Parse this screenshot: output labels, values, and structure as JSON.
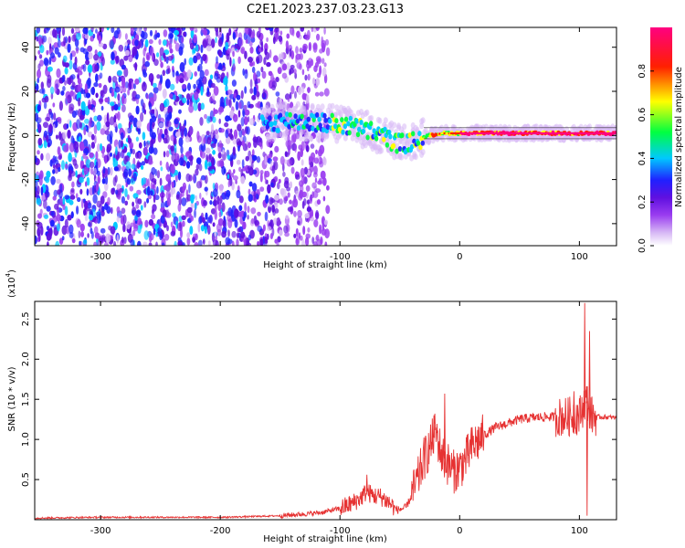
{
  "title": "C2E1.2023.237.03.23.G13",
  "chart_data": [
    {
      "type": "heatmap",
      "xlabel": "Height of straight line (km)",
      "ylabel": "Frequency (Hz)",
      "xlim": [
        -355,
        131
      ],
      "ylim": [
        -50,
        49
      ],
      "xticks": [
        -300,
        -200,
        -100,
        0,
        100
      ],
      "xtick_labels": [
        "-300",
        "-200",
        "-100",
        "0",
        "100"
      ],
      "yticks": [
        -40,
        -20,
        0,
        20,
        40
      ],
      "ytick_labels": [
        "-40",
        "-20",
        "0",
        "20",
        "40"
      ],
      "colorbar": {
        "label": "Normalized spectral amplitude",
        "range": [
          0,
          1
        ],
        "ticks": [
          0.0,
          0.2,
          0.4,
          0.6,
          0.8
        ],
        "tick_labels": [
          "0.0",
          "0.2",
          "0.4",
          "0.6",
          "0.8"
        ],
        "colormap": [
          "#ffffff",
          "#d7b8f5",
          "#9a3df0",
          "#6010e0",
          "#2020ff",
          "#00c8ff",
          "#00ff40",
          "#ffff00",
          "#ff2000",
          "#ff0080"
        ]
      },
      "ridge_line": {
        "x": [
          -165,
          -140,
          -120,
          -100,
          -80,
          -65,
          -55,
          -45,
          -35,
          -25,
          -15,
          0,
          20,
          50,
          80,
          100,
          131
        ],
        "frequency": [
          5,
          7,
          6,
          5,
          3,
          0,
          -3,
          -4,
          -2,
          0,
          1,
          1,
          1,
          1,
          1,
          1,
          1
        ]
      }
    },
    {
      "type": "line",
      "xlabel": "Height of straight line (km)",
      "ylabel": "SNR (10 * v/v)",
      "y_multiplier_label": "(x10",
      "y_multiplier_exp": "4",
      "y_multiplier_close": ")",
      "xlim": [
        -355,
        131
      ],
      "ylim": [
        0,
        2.72
      ],
      "xticks": [
        -300,
        -200,
        -100,
        0,
        100
      ],
      "xtick_labels": [
        "-300",
        "-200",
        "-100",
        "0",
        "100"
      ],
      "yticks": [
        0.5,
        1.0,
        1.5,
        2.0,
        2.5
      ],
      "ytick_labels": [
        "0.5",
        "1.0",
        "1.5",
        "2.0",
        "2.5"
      ],
      "color": "#e63232",
      "series": [
        {
          "x": [
            -355,
            -300,
            -250,
            -200,
            -170,
            -150,
            -130,
            -115,
            -100,
            -90,
            -82,
            -78,
            -72,
            -65,
            -58,
            -52,
            -45,
            -40,
            -35,
            -30,
            -25,
            -20,
            -15,
            -10,
            -5,
            0,
            5,
            10,
            20,
            30,
            40,
            50,
            60,
            70,
            80,
            90,
            95,
            100,
            103,
            105,
            107,
            110,
            115,
            120,
            131
          ],
          "y": [
            0.02,
            0.03,
            0.03,
            0.03,
            0.04,
            0.05,
            0.07,
            0.09,
            0.14,
            0.2,
            0.28,
            0.35,
            0.3,
            0.28,
            0.2,
            0.12,
            0.15,
            0.3,
            0.5,
            0.75,
            0.9,
            1.1,
            0.8,
            0.7,
            0.6,
            0.65,
            0.75,
            0.9,
            1.05,
            1.15,
            1.2,
            1.25,
            1.27,
            1.28,
            1.28,
            1.28,
            1.3,
            1.3,
            1.4,
            1.5,
            1.45,
            1.3,
            1.28,
            1.28,
            1.27
          ],
          "spikes": [
            {
              "x": -78,
              "y": 0.56
            },
            {
              "x": -22,
              "y": 1.3
            },
            {
              "x": -13,
              "y": 1.57
            },
            {
              "x": 95,
              "y": 1.6
            },
            {
              "x": 104,
              "y": 2.7
            },
            {
              "x": 106,
              "y": 0.05
            },
            {
              "x": 108,
              "y": 2.35
            }
          ]
        }
      ]
    }
  ]
}
